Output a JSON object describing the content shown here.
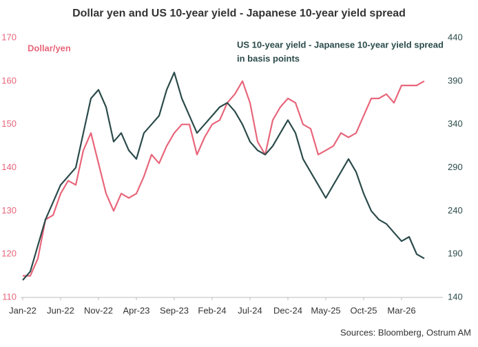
{
  "chart_data": {
    "type": "line",
    "title": "Dollar yen and US 10-year yield - Japanese 10-year yield spread",
    "annotations": [
      "Dollar/yen",
      "US 10-year yield - Japanese 10-year yield spread",
      "in basis points"
    ],
    "source": "Sources: Bloomberg, Ostrum AM",
    "x": [
      "2022-01",
      "2022-02",
      "2022-03",
      "2022-04",
      "2022-05",
      "2022-06",
      "2022-07",
      "2022-08",
      "2022-09",
      "2022-10",
      "2022-11",
      "2022-12",
      "2023-01",
      "2023-02",
      "2023-03",
      "2023-04",
      "2023-05",
      "2023-06",
      "2023-07",
      "2023-08",
      "2023-09",
      "2023-10",
      "2023-11",
      "2023-12",
      "2024-01",
      "2024-02",
      "2024-03",
      "2024-04",
      "2024-05",
      "2024-06",
      "2024-07",
      "2024-08",
      "2024-09",
      "2024-10",
      "2024-11",
      "2024-12",
      "2025-01",
      "2025-02",
      "2025-03",
      "2025-04",
      "2025-05",
      "2025-06",
      "2025-07",
      "2025-08",
      "2025-09",
      "2025-10",
      "2025-11",
      "2025-12",
      "2026-01",
      "2026-02",
      "2026-03",
      "2026-04",
      "2026-05",
      "2026-06"
    ],
    "xlim": [
      "2022-01",
      "2026-06"
    ],
    "xticks": [
      {
        "value": "2022-01",
        "label": "Jan-22"
      },
      {
        "value": "2022-06",
        "label": "Jun-22"
      },
      {
        "value": "2022-11",
        "label": "Nov-22"
      },
      {
        "value": "2023-04",
        "label": "Apr-23"
      },
      {
        "value": "2023-09",
        "label": "Sep-23"
      },
      {
        "value": "2024-02",
        "label": "Feb-24"
      },
      {
        "value": "2024-07",
        "label": "Jul-24"
      },
      {
        "value": "2024-12",
        "label": "Dec-24"
      },
      {
        "value": "2025-05",
        "label": "May-25"
      },
      {
        "value": "2025-10",
        "label": "Oct-25"
      },
      {
        "value": "2026-03",
        "label": "Mar-26"
      }
    ],
    "ylim": [
      110,
      170
    ],
    "yticks": [
      110,
      120,
      130,
      140,
      150,
      160,
      170
    ],
    "y2lim": [
      140,
      440
    ],
    "y2ticks": [
      140,
      190,
      240,
      290,
      340,
      390,
      440
    ],
    "series": [
      {
        "name": "Dollar/yen",
        "color": "#e8657a",
        "values": [
          115,
          115,
          119,
          128,
          129,
          134,
          137,
          136,
          144,
          148,
          141,
          134,
          130,
          134,
          133,
          134,
          138,
          143,
          141,
          145,
          148,
          150,
          150,
          143,
          147,
          150,
          151,
          155,
          157,
          160,
          155,
          146,
          143,
          151,
          154,
          156,
          155,
          150,
          149,
          143,
          144,
          145,
          148,
          147,
          148,
          152,
          156,
          156,
          157,
          155,
          159,
          159,
          159,
          160
        ]
      },
      {
        "name": "US 10-year yield - Japanese 10-year yield spread",
        "color": "#2b4a4a",
        "axis": "y2",
        "values": [
          160,
          170,
          200,
          230,
          250,
          270,
          280,
          290,
          330,
          370,
          380,
          360,
          320,
          330,
          310,
          300,
          330,
          340,
          350,
          380,
          400,
          370,
          350,
          330,
          340,
          350,
          360,
          365,
          355,
          340,
          320,
          310,
          305,
          315,
          330,
          345,
          330,
          300,
          285,
          270,
          255,
          270,
          285,
          300,
          285,
          260,
          240,
          230,
          225,
          215,
          205,
          210,
          190,
          185
        ]
      }
    ]
  }
}
